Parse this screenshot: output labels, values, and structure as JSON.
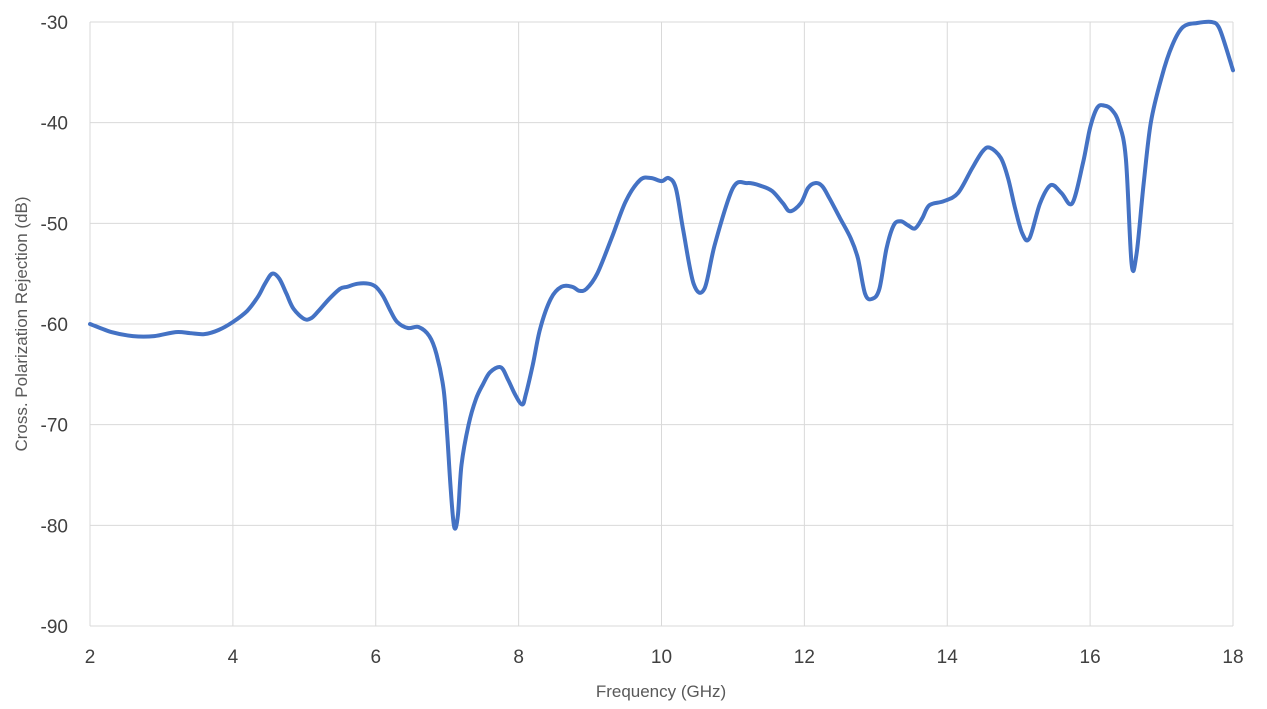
{
  "chart_data": {
    "type": "line",
    "xlabel": "Frequency (GHz)",
    "ylabel": "Cross. Polarization Rejection (dB)",
    "xlim": [
      2,
      18
    ],
    "ylim": [
      -90,
      -30
    ],
    "x_ticks": [
      2,
      4,
      6,
      8,
      10,
      12,
      14,
      16,
      18
    ],
    "y_ticks": [
      -30,
      -40,
      -50,
      -60,
      -70,
      -80,
      -90
    ],
    "grid": true,
    "line_color": "#4472C4",
    "series": [
      {
        "x": [
          2.0,
          2.3,
          2.6,
          2.9,
          3.2,
          3.4,
          3.6,
          3.8,
          4.0,
          4.2,
          4.35,
          4.45,
          4.55,
          4.65,
          4.75,
          4.85,
          5.0,
          5.1,
          5.2,
          5.35,
          5.5,
          5.6,
          5.75,
          5.9,
          6.0,
          6.1,
          6.2,
          6.3,
          6.45,
          6.6,
          6.75,
          6.85,
          6.95,
          7.0,
          7.05,
          7.1,
          7.15,
          7.2,
          7.3,
          7.4,
          7.5,
          7.6,
          7.75,
          7.85,
          7.95,
          8.05,
          8.1,
          8.2,
          8.3,
          8.45,
          8.6,
          8.75,
          8.85,
          8.95,
          9.1,
          9.3,
          9.5,
          9.7,
          9.85,
          10.0,
          10.1,
          10.2,
          10.3,
          10.45,
          10.6,
          10.75,
          11.0,
          11.2,
          11.4,
          11.55,
          11.7,
          11.8,
          11.95,
          12.05,
          12.15,
          12.25,
          12.35,
          12.5,
          12.65,
          12.75,
          12.85,
          12.95,
          13.05,
          13.15,
          13.25,
          13.35,
          13.45,
          13.55,
          13.65,
          13.75,
          13.95,
          14.15,
          14.35,
          14.5,
          14.6,
          14.75,
          14.85,
          14.95,
          15.05,
          15.15,
          15.3,
          15.45,
          15.6,
          15.75,
          15.9,
          16.0,
          16.1,
          16.2,
          16.3,
          16.4,
          16.5,
          16.58,
          16.65,
          16.75,
          16.85,
          17.0,
          17.15,
          17.3,
          17.5,
          17.7,
          17.8,
          17.9,
          18.0
        ],
        "y": [
          -60.0,
          -60.8,
          -61.2,
          -61.2,
          -60.8,
          -60.9,
          -61.0,
          -60.6,
          -59.8,
          -58.7,
          -57.3,
          -56.0,
          -55.0,
          -55.5,
          -57.0,
          -58.5,
          -59.5,
          -59.4,
          -58.7,
          -57.5,
          -56.5,
          -56.3,
          -56.0,
          -56.0,
          -56.3,
          -57.2,
          -58.6,
          -59.8,
          -60.4,
          -60.3,
          -61.2,
          -63.0,
          -66.5,
          -71.0,
          -76.5,
          -80.2,
          -79.0,
          -74.0,
          -70.0,
          -67.5,
          -66.0,
          -64.8,
          -64.3,
          -65.5,
          -67.0,
          -68.0,
          -67.0,
          -64.0,
          -60.5,
          -57.5,
          -56.3,
          -56.3,
          -56.7,
          -56.5,
          -55.0,
          -51.5,
          -47.8,
          -45.7,
          -45.5,
          -45.8,
          -45.5,
          -46.5,
          -50.5,
          -56.0,
          -56.5,
          -52.0,
          -46.5,
          -46.0,
          -46.3,
          -46.8,
          -48.0,
          -48.8,
          -48.0,
          -46.5,
          -46.0,
          -46.3,
          -47.5,
          -49.5,
          -51.5,
          -53.5,
          -57.0,
          -57.5,
          -56.5,
          -52.5,
          -50.2,
          -49.8,
          -50.2,
          -50.5,
          -49.5,
          -48.2,
          -47.8,
          -47.0,
          -44.5,
          -42.8,
          -42.5,
          -43.5,
          -45.5,
          -48.5,
          -51.0,
          -51.5,
          -48.0,
          -46.2,
          -47.0,
          -48.0,
          -44.0,
          -40.5,
          -38.5,
          -38.3,
          -38.7,
          -40.0,
          -43.5,
          -54.0,
          -53.0,
          -46.0,
          -40.0,
          -35.5,
          -32.3,
          -30.5,
          -30.1,
          -30.0,
          -30.5,
          -32.5,
          -34.8
        ]
      }
    ]
  }
}
